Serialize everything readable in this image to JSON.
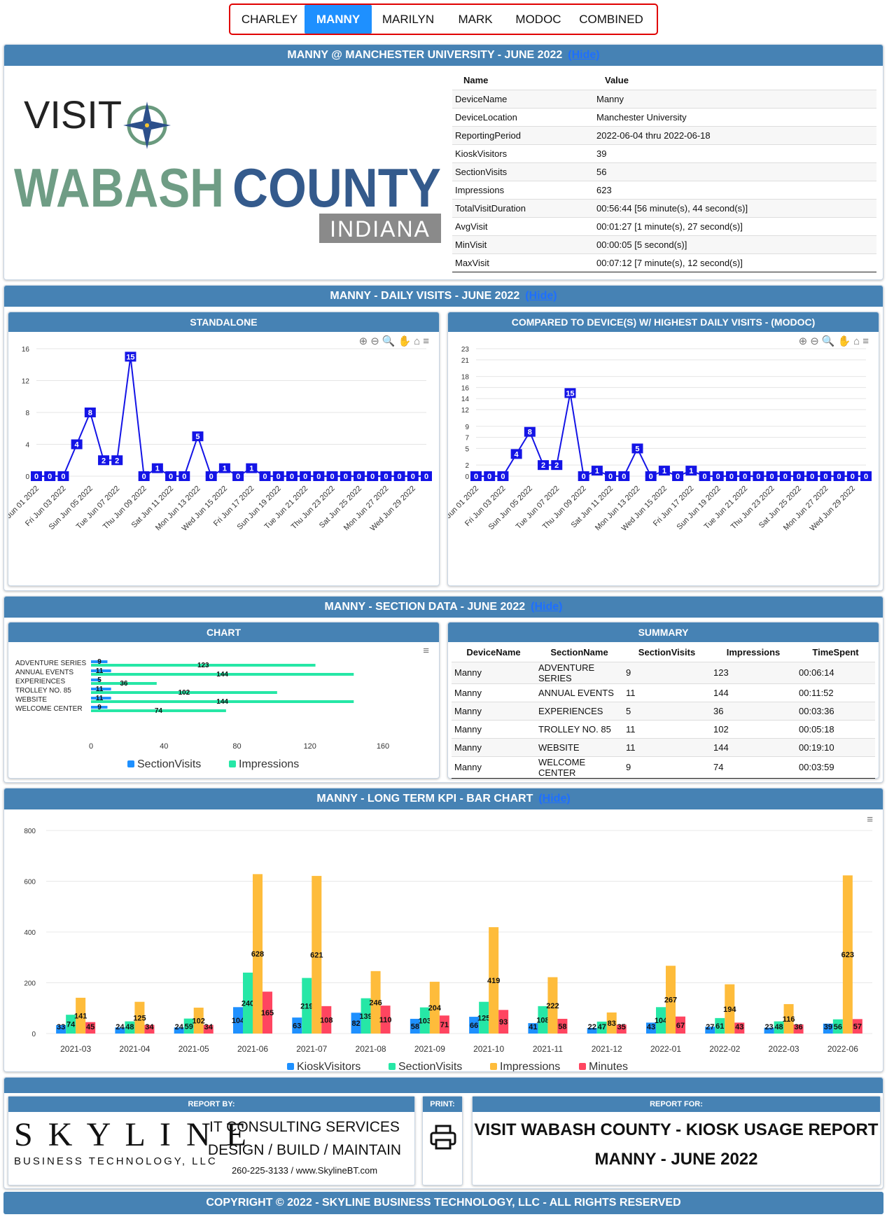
{
  "tabs": [
    {
      "label": "CHARLEY"
    },
    {
      "label": "MANNY"
    },
    {
      "label": "MARILYN"
    },
    {
      "label": "MARK"
    },
    {
      "label": "MODOC"
    },
    {
      "label": "COMBINED"
    }
  ],
  "hide_label": "(Hide)",
  "info": {
    "title": "MANNY @ MANCHESTER UNIVERSITY - JUNE 2022",
    "logo": {
      "visit": "VISIT",
      "wabash": "WABASH",
      "county": "COUNTY",
      "indiana": "INDIANA"
    },
    "col_name": "Name",
    "col_value": "Value",
    "rows": [
      [
        "DeviceName",
        "Manny"
      ],
      [
        "DeviceLocation",
        "Manchester University"
      ],
      [
        "ReportingPeriod",
        "2022-06-04 thru 2022-06-18"
      ],
      [
        "KioskVisitors",
        "39"
      ],
      [
        "SectionVisits",
        "56"
      ],
      [
        "Impressions",
        "623"
      ],
      [
        "TotalVisitDuration",
        "00:56:44 [56 minute(s), 44 second(s)]"
      ],
      [
        "AvgVisit",
        "00:01:27 [1 minute(s), 27 second(s)]"
      ],
      [
        "MinVisit",
        "00:00:05 [5 second(s)]"
      ],
      [
        "MaxVisit",
        "00:07:12 [7 minute(s), 12 second(s)]"
      ]
    ]
  },
  "daily": {
    "title": "MANNY - DAILY VISITS - JUNE 2022",
    "standalone_title": "STANDALONE",
    "compared_title": "COMPARED TO DEVICE(S) W/ HIGHEST DAILY VISITS - (MODOC)"
  },
  "section": {
    "title": "MANNY - SECTION DATA - JUNE 2022",
    "chart_title": "CHART",
    "summary_title": "SUMMARY",
    "headers": [
      "DeviceName",
      "SectionName",
      "SectionVisits",
      "Impressions",
      "TimeSpent"
    ],
    "rows": [
      [
        "Manny",
        "ADVENTURE SERIES",
        "9",
        "123",
        "00:06:14"
      ],
      [
        "Manny",
        "ANNUAL EVENTS",
        "11",
        "144",
        "00:11:52"
      ],
      [
        "Manny",
        "EXPERIENCES",
        "5",
        "36",
        "00:03:36"
      ],
      [
        "Manny",
        "TROLLEY NO. 85",
        "11",
        "102",
        "00:05:18"
      ],
      [
        "Manny",
        "WEBSITE",
        "11",
        "144",
        "00:19:10"
      ],
      [
        "Manny",
        "WELCOME CENTER",
        "9",
        "74",
        "00:03:59"
      ]
    ]
  },
  "kpi": {
    "title": "MANNY - LONG TERM KPI - BAR CHART"
  },
  "chart_data": [
    {
      "type": "line",
      "x": [
        "Wed Jun 01 2022",
        "Thu Jun 02 2022",
        "Fri Jun 03 2022",
        "Sat Jun 04 2022",
        "Sun Jun 05 2022",
        "Mon Jun 06 2022",
        "Tue Jun 07 2022",
        "Wed Jun 08 2022",
        "Thu Jun 09 2022",
        "Fri Jun 10 2022",
        "Sat Jun 11 2022",
        "Sun Jun 12 2022",
        "Mon Jun 13 2022",
        "Tue Jun 14 2022",
        "Wed Jun 15 2022",
        "Thu Jun 16 2022",
        "Fri Jun 17 2022",
        "Sat Jun 18 2022",
        "Sun Jun 19 2022",
        "Mon Jun 20 2022",
        "Tue Jun 21 2022",
        "Wed Jun 22 2022",
        "Thu Jun 23 2022",
        "Fri Jun 24 2022",
        "Sat Jun 25 2022",
        "Sun Jun 26 2022",
        "Mon Jun 27 2022",
        "Tue Jun 28 2022",
        "Wed Jun 29 2022",
        "Thu Jun 30 2022"
      ],
      "xticks": [
        "Wed Jun 01 2022",
        "Fri Jun 03 2022",
        "Sun Jun 05 2022",
        "Tue Jun 07 2022",
        "Thu Jun 09 2022",
        "Sat Jun 11 2022",
        "Mon Jun 13 2022",
        "Wed Jun 15 2022",
        "Fri Jun 17 2022",
        "Sun Jun 19 2022",
        "Tue Jun 21 2022",
        "Thu Jun 23 2022",
        "Sat Jun 25 2022",
        "Mon Jun 27 2022",
        "Wed Jun 29 2022"
      ],
      "values": [
        0,
        0,
        0,
        4,
        8,
        2,
        2,
        15,
        0,
        1,
        0,
        0,
        5,
        0,
        1,
        0,
        1,
        0,
        0,
        0,
        0,
        0,
        0,
        0,
        0,
        0,
        0,
        0,
        0,
        0
      ],
      "ylim": [
        0,
        16
      ],
      "yticks": [
        0,
        4,
        8,
        12,
        16
      ]
    },
    {
      "type": "line",
      "x": [
        "Wed Jun 01 2022",
        "Thu Jun 02 2022",
        "Fri Jun 03 2022",
        "Sat Jun 04 2022",
        "Sun Jun 05 2022",
        "Mon Jun 06 2022",
        "Tue Jun 07 2022",
        "Wed Jun 08 2022",
        "Thu Jun 09 2022",
        "Fri Jun 10 2022",
        "Sat Jun 11 2022",
        "Sun Jun 12 2022",
        "Mon Jun 13 2022",
        "Tue Jun 14 2022",
        "Wed Jun 15 2022",
        "Thu Jun 16 2022",
        "Fri Jun 17 2022",
        "Sat Jun 18 2022",
        "Sun Jun 19 2022",
        "Mon Jun 20 2022",
        "Tue Jun 21 2022",
        "Wed Jun 22 2022",
        "Thu Jun 23 2022",
        "Fri Jun 24 2022",
        "Sat Jun 25 2022",
        "Sun Jun 26 2022",
        "Mon Jun 27 2022",
        "Tue Jun 28 2022",
        "Wed Jun 29 2022",
        "Thu Jun 30 2022"
      ],
      "xticks": [
        "Wed Jun 01 2022",
        "Fri Jun 03 2022",
        "Sun Jun 05 2022",
        "Tue Jun 07 2022",
        "Thu Jun 09 2022",
        "Sat Jun 11 2022",
        "Mon Jun 13 2022",
        "Wed Jun 15 2022",
        "Fri Jun 17 2022",
        "Sun Jun 19 2022",
        "Tue Jun 21 2022",
        "Thu Jun 23 2022",
        "Sat Jun 25 2022",
        "Mon Jun 27 2022",
        "Wed Jun 29 2022"
      ],
      "values": [
        0,
        0,
        0,
        4,
        8,
        2,
        2,
        15,
        0,
        1,
        0,
        0,
        5,
        0,
        1,
        0,
        1,
        0,
        0,
        0,
        0,
        0,
        0,
        0,
        0,
        0,
        0,
        0,
        0,
        0
      ],
      "ylim": [
        0,
        23
      ],
      "yticks": [
        0,
        2,
        5,
        7,
        9,
        12,
        14,
        16,
        18,
        21,
        23
      ]
    },
    {
      "type": "bar",
      "orientation": "horizontal",
      "categories": [
        "ADVENTURE SERIES",
        "ANNUAL EVENTS",
        "EXPERIENCES",
        "TROLLEY NO. 85",
        "WEBSITE",
        "WELCOME CENTER"
      ],
      "series": [
        {
          "name": "SectionVisits",
          "values": [
            9,
            11,
            5,
            11,
            11,
            9
          ],
          "color": "#1e90ff"
        },
        {
          "name": "Impressions",
          "values": [
            123,
            144,
            36,
            102,
            144,
            74
          ],
          "color": "#26e7a6"
        }
      ],
      "xlim": [
        0,
        160
      ],
      "xticks": [
        0,
        40,
        80,
        120,
        160
      ],
      "legend": "bottom"
    },
    {
      "type": "bar",
      "categories": [
        "2021-03",
        "2021-04",
        "2021-05",
        "2021-06",
        "2021-07",
        "2021-08",
        "2021-09",
        "2021-10",
        "2021-11",
        "2021-12",
        "2022-01",
        "2022-02",
        "2022-03",
        "2022-06"
      ],
      "series": [
        {
          "name": "KioskVisitors",
          "values": [
            33,
            24,
            24,
            104,
            63,
            82,
            58,
            66,
            41,
            22,
            43,
            27,
            23,
            39
          ],
          "color": "#1e90ff"
        },
        {
          "name": "SectionVisits",
          "values": [
            74,
            48,
            59,
            240,
            219,
            139,
            103,
            125,
            108,
            47,
            104,
            61,
            48,
            56
          ],
          "color": "#26e7a6"
        },
        {
          "name": "Impressions",
          "values": [
            141,
            125,
            102,
            628,
            621,
            246,
            204,
            419,
            222,
            83,
            267,
            194,
            116,
            623
          ],
          "color": "#febc3b"
        },
        {
          "name": "Minutes",
          "values": [
            45,
            34,
            34,
            165,
            108,
            110,
            71,
            93,
            58,
            35,
            67,
            43,
            36,
            57
          ],
          "color": "#ff4560"
        }
      ],
      "ylim": [
        0,
        800
      ],
      "yticks": [
        0,
        200,
        400,
        600,
        800
      ],
      "legend": "bottom"
    }
  ],
  "footer": {
    "report_by": "REPORT BY:",
    "print": "PRINT:",
    "report_for": "REPORT FOR:",
    "skyline": "S K Y L I N E",
    "skyline_sub": "BUSINESS TECHNOLOGY, LLC",
    "line1": "IT CONSULTING SERVICES",
    "line2": "DESIGN / BUILD / MAINTAIN",
    "line3": "260-225-3133 / www.SkylineBT.com",
    "report_title": "VISIT WABASH COUNTY - KIOSK USAGE REPORT",
    "report_sub": "MANNY - JUNE 2022",
    "copyright": "COPYRIGHT © 2022 - SKYLINE BUSINESS TECHNOLOGY, LLC - ALL RIGHTS RESERVED"
  },
  "colors": {
    "header": "#4682b4",
    "active_tab": "#1e90ff",
    "line": "#1414e6"
  }
}
